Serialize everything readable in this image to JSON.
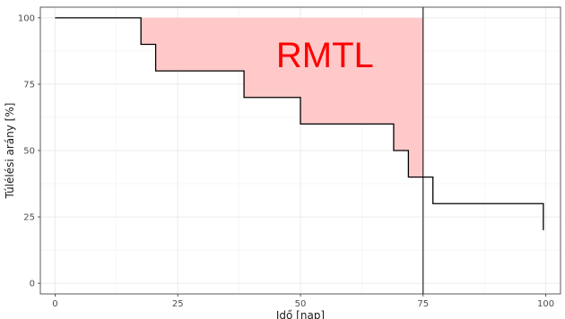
{
  "chart_data": {
    "type": "line",
    "xlabel": "Idő [nap]",
    "ylabel": "Túlélési arány [%]",
    "xlim": [
      -3,
      103
    ],
    "ylim": [
      -4,
      104
    ],
    "x_ticks": [
      0,
      25,
      50,
      75,
      100
    ],
    "x_tick_labels": [
      "0",
      "25",
      "50",
      "75",
      "100"
    ],
    "y_ticks": [
      0,
      25,
      50,
      75,
      100
    ],
    "y_tick_labels": [
      "0",
      "25",
      "50",
      "75",
      "100"
    ],
    "grid": true,
    "series": [
      {
        "step": "post",
        "x": [
          0,
          17.5,
          20.5,
          38.5,
          50,
          69,
          72,
          77,
          99.5
        ],
        "y": [
          100,
          90,
          80,
          70,
          60,
          50,
          40,
          30,
          20
        ],
        "color": "#000000"
      }
    ],
    "vertical_line": {
      "x": 75,
      "color": "#000000"
    },
    "shaded_area": {
      "from_x": 0,
      "to_x": 75,
      "upper_y": 100,
      "fill": "#ffc9c9"
    },
    "annotations": [
      {
        "text": "RMTL",
        "x": 55,
        "y": 85,
        "color": "#ff0000"
      }
    ]
  }
}
